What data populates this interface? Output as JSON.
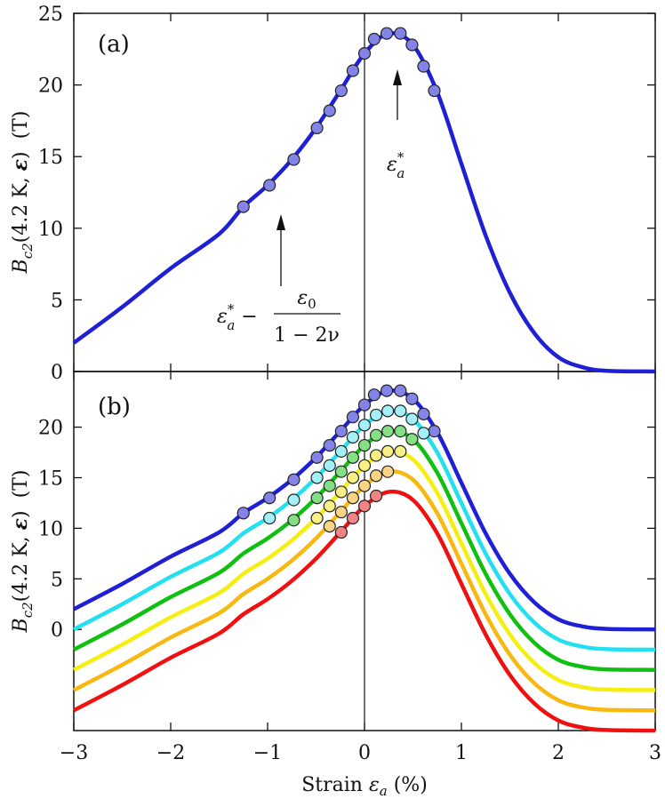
{
  "chart_data": [
    {
      "type": "line",
      "panel_label": "(a)",
      "ylabel": [
        "B",
        "c2",
        "(4.2 K, ",
        "ε",
        ")  (T)"
      ],
      "annotations": {
        "peak": [
          "ε",
          "*",
          "a"
        ],
        "left": [
          "ε",
          "*",
          "a",
          " − "
        ],
        "numerator": [
          "ε",
          "0"
        ],
        "denominator": "1 − 2ν"
      },
      "xlim": [
        -3,
        3
      ],
      "xticks": [
        -3,
        -2,
        -1,
        0,
        1,
        2,
        3
      ],
      "ylim": [
        0,
        25
      ],
      "yticks": [
        0,
        5,
        10,
        15,
        20,
        25
      ],
      "x": [
        -3,
        -2.5,
        -2,
        -1.5,
        -1.25,
        -1,
        -0.75,
        -0.5,
        -0.25,
        0,
        0.25,
        0.5,
        0.75,
        1,
        1.25,
        1.5,
        1.75,
        2,
        2.25,
        2.5,
        3
      ],
      "series": [
        {
          "color": "#1f1fd6",
          "values": [
            2.0,
            4.5,
            7.2,
            9.6,
            11.5,
            13.0,
            14.8,
            17.0,
            19.6,
            22.2,
            23.6,
            22.8,
            19.5,
            14.5,
            9.5,
            5.5,
            2.7,
            1.0,
            0.3,
            0.05,
            0
          ]
        }
      ],
      "markers": [
        {
          "color": "#8484e8",
          "x": [
            -1.25,
            -0.98,
            -0.73,
            -0.49,
            -0.36,
            -0.24,
            -0.12,
            0,
            0.1,
            0.23,
            0.37,
            0.49,
            0.61,
            0.72
          ],
          "values": [
            11.5,
            13.0,
            14.8,
            17.0,
            18.2,
            19.6,
            21.0,
            22.2,
            23.2,
            23.6,
            23.6,
            22.8,
            21.3,
            19.6
          ]
        }
      ]
    },
    {
      "type": "line",
      "panel_label": "(b)",
      "ylabel": [
        "B",
        "c2",
        "(4.2 K, ",
        "ε",
        ")  (T)"
      ],
      "xlabel": [
        "Strain ",
        "ε",
        "a",
        " (%)"
      ],
      "xlim": [
        -3,
        3
      ],
      "xticks": [
        {
          "value": -3,
          "label": "−3"
        },
        {
          "value": -2,
          "label": "−2"
        },
        {
          "value": -1,
          "label": "−1"
        },
        0,
        1,
        2,
        3
      ],
      "ylim": [
        -10,
        25.5
      ],
      "yticks": [
        0,
        5,
        10,
        15,
        20
      ],
      "x": [
        -3,
        -2.5,
        -2,
        -1.5,
        -1.25,
        -1,
        -0.75,
        -0.5,
        -0.25,
        0,
        0.25,
        0.5,
        0.75,
        1,
        1.25,
        1.5,
        1.75,
        2,
        2.25,
        2.5,
        3
      ],
      "series": [
        {
          "color": "#1f1fd6",
          "values": [
            2.0,
            4.5,
            7.2,
            9.6,
            11.5,
            13.0,
            14.8,
            17.0,
            19.6,
            22.2,
            23.6,
            22.8,
            19.5,
            14.5,
            9.5,
            5.5,
            2.7,
            1.0,
            0.3,
            0.05,
            0
          ]
        },
        {
          "color": "#22e0f0",
          "values": [
            0,
            2.5,
            5.2,
            7.6,
            9.5,
            11,
            12.8,
            15,
            17.6,
            20.2,
            21.6,
            20.8,
            17.5,
            12.5,
            7.5,
            3.5,
            0.7,
            -1,
            -1.7,
            -1.95,
            -2
          ]
        },
        {
          "color": "#10c010",
          "values": [
            -2,
            0.5,
            3.2,
            5.6,
            7.5,
            9,
            10.8,
            13,
            15.6,
            18.2,
            19.6,
            18.8,
            15.5,
            10.5,
            5.5,
            1.5,
            -1.3,
            -3,
            -3.7,
            -3.95,
            -4
          ]
        },
        {
          "color": "#f4ef10",
          "values": [
            -4,
            -1.5,
            1.2,
            3.6,
            5.5,
            7,
            8.8,
            11,
            13.6,
            16.2,
            17.6,
            16.8,
            13.5,
            8.5,
            3.5,
            -0.5,
            -3.3,
            -5,
            -5.7,
            -5.95,
            -6
          ]
        },
        {
          "color": "#f8b810",
          "values": [
            -6,
            -3.5,
            -0.8,
            1.6,
            3.5,
            5,
            6.8,
            9,
            11.6,
            14.2,
            15.6,
            14.8,
            11.5,
            6.5,
            1.5,
            -2.5,
            -5.3,
            -7,
            -7.7,
            -7.95,
            -8
          ]
        },
        {
          "color": "#f01010",
          "values": [
            -8,
            -5.5,
            -2.8,
            -0.4,
            1.5,
            3,
            4.8,
            7,
            9.6,
            12.2,
            13.6,
            12.8,
            9.5,
            4.5,
            -0.5,
            -4.5,
            -7.3,
            -9,
            -9.7,
            -9.95,
            -10
          ]
        }
      ],
      "markers": [
        {
          "color": "#8484e8",
          "x": [
            -1.25,
            -0.98,
            -0.73,
            -0.49,
            -0.36,
            -0.24,
            -0.12,
            0,
            0.1,
            0.23,
            0.37,
            0.49,
            0.61,
            0.72
          ],
          "values": [
            11.5,
            13.0,
            14.8,
            17.0,
            18.2,
            19.6,
            21.0,
            22.2,
            23.2,
            23.6,
            23.6,
            22.8,
            21.3,
            19.6
          ]
        },
        {
          "color": "#a4f0f8",
          "x": [
            -0.98,
            -0.73,
            -0.49,
            -0.36,
            -0.24,
            -0.12,
            0,
            0.12,
            0.24,
            0.37,
            0.49,
            0.61
          ],
          "values": [
            11.0,
            12.8,
            15.0,
            16.2,
            17.6,
            19.0,
            20.2,
            21.2,
            21.6,
            21.6,
            20.8,
            19.4
          ]
        },
        {
          "color": "#84e084",
          "x": [
            -0.73,
            -0.49,
            -0.36,
            -0.24,
            -0.12,
            0,
            0.12,
            0.24,
            0.37,
            0.49
          ],
          "values": [
            10.8,
            13.0,
            14.2,
            15.6,
            17.0,
            18.2,
            19.2,
            19.6,
            19.6,
            18.8
          ]
        },
        {
          "color": "#f8f084",
          "x": [
            -0.49,
            -0.36,
            -0.24,
            -0.12,
            0,
            0.12,
            0.24,
            0.37
          ],
          "values": [
            11.0,
            12.2,
            13.6,
            15.0,
            16.2,
            17.2,
            17.6,
            17.6
          ]
        },
        {
          "color": "#f8d484",
          "x": [
            -0.36,
            -0.24,
            -0.12,
            0,
            0.12,
            0.24
          ],
          "values": [
            10.2,
            11.6,
            13.0,
            14.2,
            15.2,
            15.6
          ]
        },
        {
          "color": "#f08484",
          "x": [
            -0.24,
            -0.12,
            0,
            0.12
          ],
          "values": [
            9.6,
            11.0,
            12.2,
            13.2
          ]
        }
      ]
    }
  ]
}
